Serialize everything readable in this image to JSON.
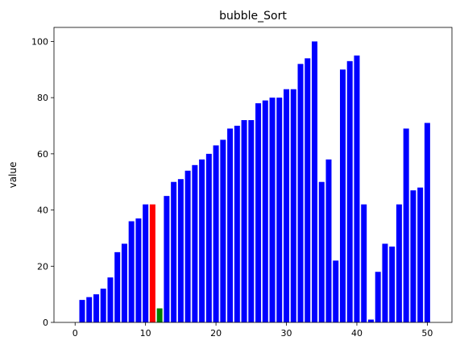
{
  "chart_data": {
    "type": "bar",
    "title": "bubble_Sort",
    "xlabel": "",
    "ylabel": "value",
    "xlim": [
      -3.0,
      53.5
    ],
    "ylim": [
      0,
      105
    ],
    "xticks": [
      0,
      10,
      20,
      30,
      40,
      50
    ],
    "yticks": [
      0,
      20,
      40,
      60,
      80,
      100
    ],
    "grid": false,
    "x": [
      1,
      2,
      3,
      4,
      5,
      6,
      7,
      8,
      9,
      10,
      11,
      12,
      13,
      14,
      15,
      16,
      17,
      18,
      19,
      20,
      21,
      22,
      23,
      24,
      25,
      26,
      27,
      28,
      29,
      30,
      31,
      32,
      33,
      34,
      35,
      36,
      37,
      38,
      39,
      40,
      41,
      42,
      43,
      44,
      45,
      46,
      47,
      48,
      49,
      50
    ],
    "values": [
      8,
      9,
      10,
      12,
      16,
      25,
      28,
      36,
      37,
      42,
      42,
      5,
      45,
      50,
      51,
      54,
      56,
      58,
      60,
      63,
      65,
      69,
      70,
      72,
      72,
      78,
      79,
      80,
      80,
      83,
      83,
      92,
      94,
      100,
      50,
      58,
      22,
      90,
      93,
      95,
      42,
      1,
      18,
      28,
      27,
      42,
      69,
      47,
      48,
      71
    ],
    "colors": [
      "blue",
      "blue",
      "blue",
      "blue",
      "blue",
      "blue",
      "blue",
      "blue",
      "blue",
      "blue",
      "red",
      "green",
      "blue",
      "blue",
      "blue",
      "blue",
      "blue",
      "blue",
      "blue",
      "blue",
      "blue",
      "blue",
      "blue",
      "blue",
      "blue",
      "blue",
      "blue",
      "blue",
      "blue",
      "blue",
      "blue",
      "blue",
      "blue",
      "blue",
      "blue",
      "blue",
      "blue",
      "blue",
      "blue",
      "blue",
      "blue",
      "blue",
      "blue",
      "blue",
      "blue",
      "blue",
      "blue",
      "blue",
      "blue",
      "blue"
    ],
    "color_map": {
      "blue": "#0000ff",
      "red": "#ff0000",
      "green": "#008000"
    }
  }
}
